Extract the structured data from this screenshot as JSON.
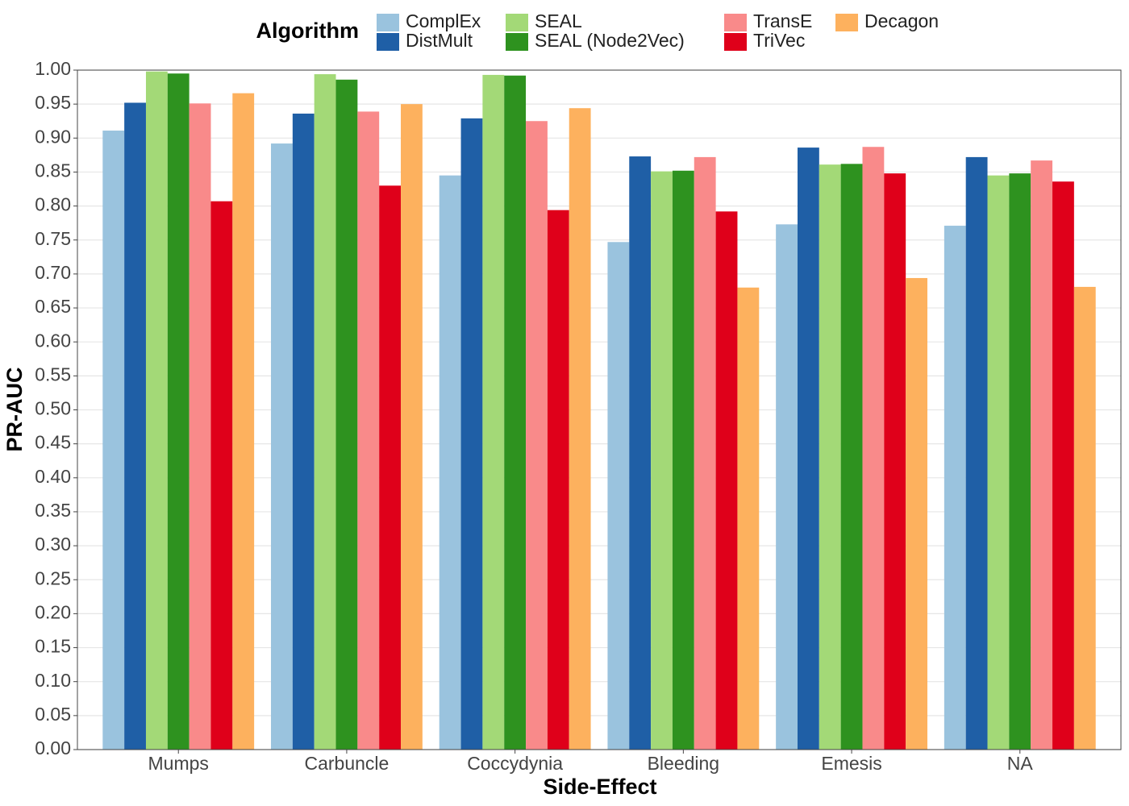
{
  "chart_data": {
    "type": "bar",
    "x_label": "Side-Effect",
    "y_label": "PR-AUC",
    "legend_title": "Algorithm",
    "legend_position": "top",
    "categories": [
      "Mumps",
      "Carbuncle",
      "Coccydynia",
      "Bleeding",
      "Emesis",
      "NA"
    ],
    "series": [
      {
        "name": "ComplEx",
        "color": "#9ac3de",
        "values": [
          0.911,
          0.892,
          0.845,
          0.747,
          0.773,
          0.771
        ]
      },
      {
        "name": "DistMult",
        "color": "#1f5fa6",
        "values": [
          0.952,
          0.936,
          0.929,
          0.873,
          0.886,
          0.872
        ]
      },
      {
        "name": "SEAL",
        "color": "#a3d977",
        "values": [
          0.998,
          0.994,
          0.993,
          0.851,
          0.861,
          0.845
        ]
      },
      {
        "name": "SEAL (Node2Vec)",
        "color": "#2e921f",
        "values": [
          0.995,
          0.986,
          0.992,
          0.852,
          0.862,
          0.848
        ]
      },
      {
        "name": "TransE",
        "color": "#f98a8a",
        "values": [
          0.951,
          0.939,
          0.925,
          0.872,
          0.887,
          0.867
        ]
      },
      {
        "name": "TriVec",
        "color": "#df001a",
        "values": [
          0.807,
          0.83,
          0.794,
          0.792,
          0.848,
          0.836
        ]
      },
      {
        "name": "Decagon",
        "color": "#fdb15e",
        "values": [
          0.966,
          0.95,
          0.944,
          0.68,
          0.694,
          0.681
        ]
      }
    ],
    "ylim": [
      0,
      1
    ],
    "yticks": [
      {
        "value": 0,
        "label": "0.00"
      },
      0.05,
      {
        "value": 0.1,
        "label": "0.10"
      },
      0.15,
      {
        "value": 0.2,
        "label": "0.20"
      },
      0.25,
      {
        "value": 0.3,
        "label": "0.30"
      },
      0.35,
      {
        "value": 0.4,
        "label": "0.40"
      },
      0.45,
      {
        "value": 0.5,
        "label": "0.50"
      },
      0.55,
      {
        "value": 0.6,
        "label": "0.60"
      },
      0.65,
      {
        "value": 0.7,
        "label": "0.70"
      },
      0.75,
      {
        "value": 0.8,
        "label": "0.80"
      },
      0.85,
      {
        "value": 0.9,
        "label": "0.90"
      },
      0.95,
      {
        "value": 1,
        "label": "1.00"
      }
    ],
    "grid": true
  }
}
